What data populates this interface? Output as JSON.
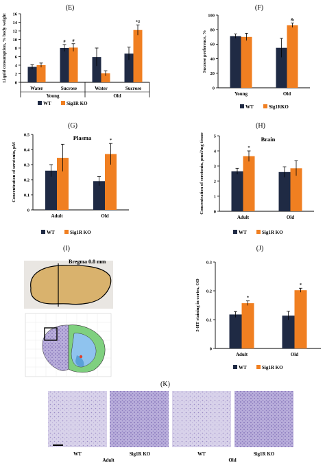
{
  "colors": {
    "wt": "#1f2a44",
    "ko": "#f07f21",
    "axis": "#000000"
  },
  "panels": {
    "E": {
      "label": "(E)"
    },
    "F": {
      "label": "(F)"
    },
    "G": {
      "label": "(G)"
    },
    "H": {
      "label": "(H)"
    },
    "I": {
      "label": "(I)",
      "bregma": "Bregma 0.8 mm"
    },
    "J": {
      "label": "(J)"
    },
    "K": {
      "label": "(K)",
      "labels": [
        "WT",
        "Sig1R KO",
        "WT",
        "Sig1R KO"
      ],
      "groups": [
        "Adult",
        "Old"
      ]
    }
  },
  "chart_data": [
    {
      "id": "E",
      "type": "bar",
      "ylabel": "Liquid consumption, % body weight",
      "ylim": [
        0,
        16
      ],
      "yticks": [
        "0",
        "2",
        "4",
        "6",
        "8",
        "10",
        "12",
        "14",
        "16"
      ],
      "categories": [
        "Water",
        "Sucrose",
        "Water",
        "Sucrose"
      ],
      "groups": [
        "Young",
        "Old"
      ],
      "series": [
        {
          "name": "WT",
          "values": [
            3.6,
            8.0,
            5.9,
            6.7
          ],
          "err": [
            0.5,
            0.8,
            2.1,
            1.5
          ]
        },
        {
          "name": "Sig1R KO",
          "values": [
            4.0,
            8.1,
            2.1,
            12.2
          ],
          "err": [
            0.5,
            0.9,
            0.6,
            1.2
          ]
        }
      ],
      "annotations": [
        [
          "",
          "#",
          "",
          ""
        ],
        [
          "",
          "#",
          "",
          "*#"
        ]
      ],
      "legend": [
        "WT",
        "Sig1R KO"
      ],
      "grid": false,
      "legend_position": "bottom"
    },
    {
      "id": "F",
      "type": "bar",
      "ylabel": "Sucrose preference, %",
      "ylim": [
        0,
        100
      ],
      "yticks": [
        "0",
        "20",
        "40",
        "60",
        "80",
        "100"
      ],
      "categories": [
        "Young",
        "Old"
      ],
      "series": [
        {
          "name": "WT",
          "values": [
            71,
            55
          ],
          "err": [
            3,
            13
          ]
        },
        {
          "name": "Sig1RKO",
          "values": [
            70,
            86
          ],
          "err": [
            5,
            3
          ]
        }
      ],
      "annotations": [
        [
          "",
          ""
        ],
        [
          "",
          "&"
        ]
      ],
      "legend": [
        "WT",
        "Sig1RKO"
      ],
      "grid": false,
      "legend_position": "bottom"
    },
    {
      "id": "G",
      "type": "bar",
      "title": "Plasma",
      "ylabel": "Concentration of serotonin, µM",
      "ylim": [
        0,
        0.5
      ],
      "yticks": [
        "0",
        "0.1",
        "0.2",
        "0.3",
        "0.4",
        "0.5"
      ],
      "categories": [
        "Adult",
        "Old"
      ],
      "series": [
        {
          "name": "WT",
          "values": [
            0.26,
            0.19
          ],
          "err": [
            0.04,
            0.03
          ]
        },
        {
          "name": "Sig1R KO",
          "values": [
            0.345,
            0.37
          ],
          "err": [
            0.09,
            0.07
          ]
        }
      ],
      "annotations": [
        [
          "",
          ""
        ],
        [
          "",
          "*"
        ]
      ],
      "legend": [
        "WT",
        "Sig1R KO"
      ],
      "grid": false,
      "legend_position": "bottom"
    },
    {
      "id": "H",
      "type": "bar",
      "title": "Brain",
      "ylabel": "Concentration of serotonin, pmol/mg tissue",
      "ylim": [
        0,
        5
      ],
      "yticks": [
        "0",
        "1",
        "2",
        "3",
        "4",
        "5"
      ],
      "categories": [
        "Adult",
        "Old"
      ],
      "series": [
        {
          "name": "WT",
          "values": [
            2.65,
            2.6
          ],
          "err": [
            0.2,
            0.35
          ]
        },
        {
          "name": "Sig1R KO",
          "values": [
            3.65,
            2.85
          ],
          "err": [
            0.35,
            0.5
          ]
        }
      ],
      "annotations": [
        [
          "",
          ""
        ],
        [
          "*",
          ""
        ]
      ],
      "legend": [
        "WT",
        "Sig1R KO"
      ],
      "grid": false,
      "legend_position": "bottom"
    },
    {
      "id": "J",
      "type": "bar",
      "ylabel": "5-HT staining in cortex, OD",
      "ylim": [
        0,
        0.3
      ],
      "yticks": [
        "0",
        "0.1",
        "0.2",
        "0.3"
      ],
      "categories": [
        "Adult",
        "Old"
      ],
      "series": [
        {
          "name": "WT",
          "values": [
            0.118,
            0.114
          ],
          "err": [
            0.01,
            0.015
          ]
        },
        {
          "name": "Sig1R KO",
          "values": [
            0.157,
            0.202
          ],
          "err": [
            0.008,
            0.007
          ]
        }
      ],
      "annotations": [
        [
          "",
          ""
        ],
        [
          "*",
          "*"
        ]
      ],
      "legend": [
        "WT",
        "Sig1R KO"
      ],
      "grid": false,
      "legend_position": "bottom"
    }
  ]
}
